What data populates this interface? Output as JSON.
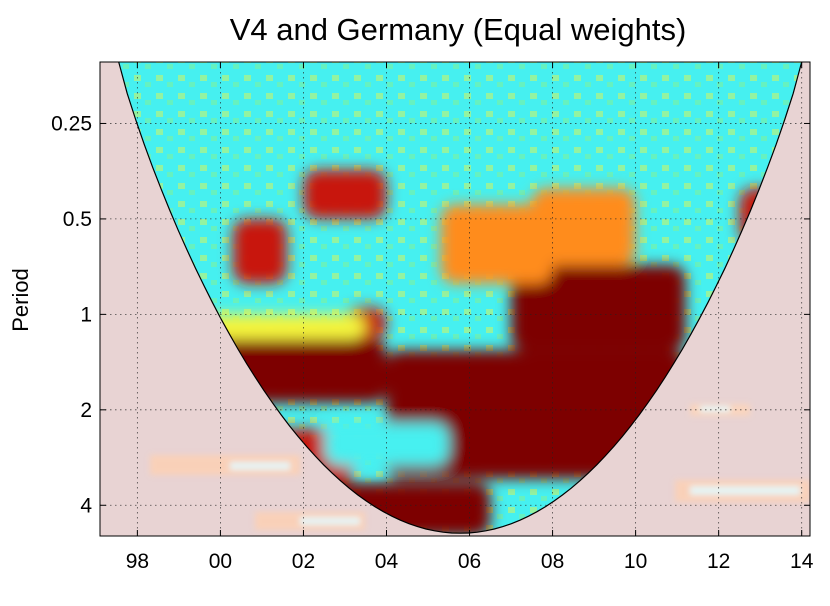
{
  "chart_data": {
    "type": "heatmap",
    "title": "V4 and Germany (Equal weights)",
    "xlabel": "",
    "ylabel": "Period",
    "x_tick_labels": [
      "98",
      "00",
      "02",
      "04",
      "06",
      "08",
      "10",
      "12",
      "14"
    ],
    "x_tick_values": [
      1998,
      2000,
      2002,
      2004,
      2006,
      2008,
      2010,
      2012,
      2014
    ],
    "xlim": [
      1997.1,
      2014.2
    ],
    "y_tick_labels": [
      "0.25",
      "0.5",
      "1",
      "2",
      "4"
    ],
    "y_tick_values": [
      0.25,
      0.5,
      1,
      2,
      4
    ],
    "ylim": [
      0.16,
      5.0
    ],
    "y_scale": "log2",
    "y_inverted": true,
    "grid": true,
    "grid_style": "dotted",
    "colormap": "jet-hot (cyan low → yellow → orange → dark red high)",
    "cone_of_influence": "shaded pale pink outside cone",
    "colors": {
      "low": "#46f0f0",
      "mid_low": "#f5f53c",
      "mid": "#ff8c1e",
      "high": "#c8190a",
      "max": "#7d0000",
      "coi_shade": "#e6cdcd"
    },
    "regions": [
      {
        "x": [
          1997.9,
          2004.0
        ],
        "period": [
          1.2,
          1.9
        ],
        "level": "max"
      },
      {
        "x": [
          1998.6,
          2003.2
        ],
        "period": [
          2.3,
          3.4
        ],
        "level": "high"
      },
      {
        "x": [
          2002.0,
          2006.5
        ],
        "period": [
          3.4,
          5.0
        ],
        "level": "max"
      },
      {
        "x": [
          2004.0,
          2011.2
        ],
        "period": [
          1.3,
          3.3
        ],
        "level": "max"
      },
      {
        "x": [
          2007.0,
          2011.2
        ],
        "period": [
          0.7,
          1.3
        ],
        "level": "max"
      },
      {
        "x": [
          2002.0,
          2004.0
        ],
        "period": [
          0.35,
          0.5
        ],
        "level": "high"
      },
      {
        "x": [
          2000.3,
          2001.6
        ],
        "period": [
          0.5,
          0.8
        ],
        "level": "high"
      },
      {
        "x": [
          2005.3,
          2008.0
        ],
        "period": [
          0.45,
          0.8
        ],
        "level": "mid"
      },
      {
        "x": [
          2012.5,
          2013.5
        ],
        "period": [
          0.4,
          0.6
        ],
        "level": "high"
      },
      {
        "x": [
          2003.0,
          2004.0
        ],
        "period": [
          0.95,
          1.2
        ],
        "level": "high"
      },
      {
        "x": [
          2007.5,
          2010.0
        ],
        "period": [
          0.4,
          0.7
        ],
        "level": "mid"
      },
      {
        "x": [
          1999.0,
          2003.5
        ],
        "period": [
          1.0,
          1.2
        ],
        "level": "mid_low"
      },
      {
        "x": [
          2002.5,
          2005.5
        ],
        "period": [
          2.2,
          3.0
        ],
        "level": "low"
      }
    ]
  }
}
